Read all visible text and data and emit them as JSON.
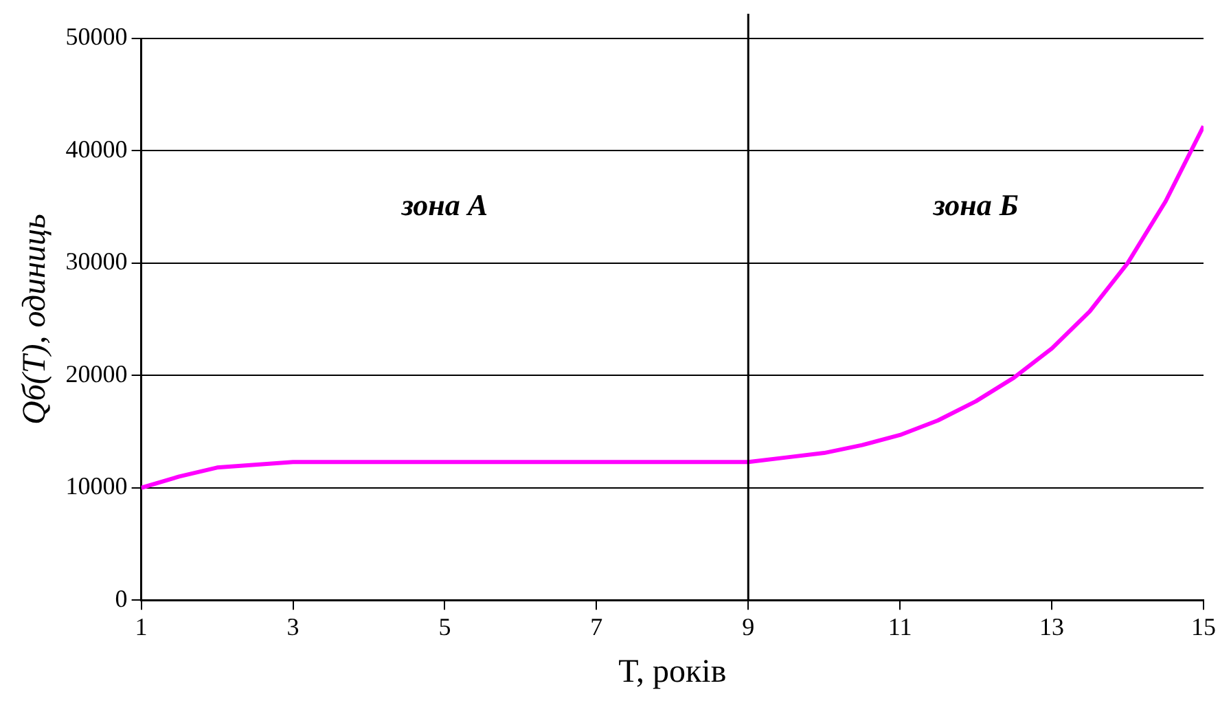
{
  "chart_data": {
    "type": "line",
    "xlabel": "T, років",
    "ylabel": "Qб(T), одиниць",
    "x": [
      1,
      1.5,
      2,
      3,
      4,
      5,
      6,
      7,
      8,
      9,
      9.5,
      10,
      10.5,
      11,
      11.5,
      12,
      12.5,
      13,
      13.5,
      14,
      14.5,
      15
    ],
    "series": [
      {
        "color": "#ff00ff",
        "values": [
          10000,
          11000,
          11800,
          12300,
          12300,
          12300,
          12300,
          12300,
          12300,
          12300,
          12700,
          13100,
          13800,
          14700,
          16000,
          17700,
          19800,
          22400,
          25700,
          30000,
          35500,
          42200
        ]
      }
    ],
    "xlim": [
      1,
      15
    ],
    "xticks": [
      1,
      3,
      5,
      7,
      9,
      11,
      13,
      15
    ],
    "ylim": [
      0,
      50000
    ],
    "yticks": [
      0,
      10000,
      20000,
      30000,
      40000,
      50000
    ],
    "grid": "y",
    "legend": false,
    "marker": "none",
    "line_style": "solid",
    "ref_lines": [
      {
        "axis": "x",
        "value": 9,
        "color": "#000000"
      }
    ],
    "annotations": [
      "зона А",
      "зона Б"
    ]
  }
}
